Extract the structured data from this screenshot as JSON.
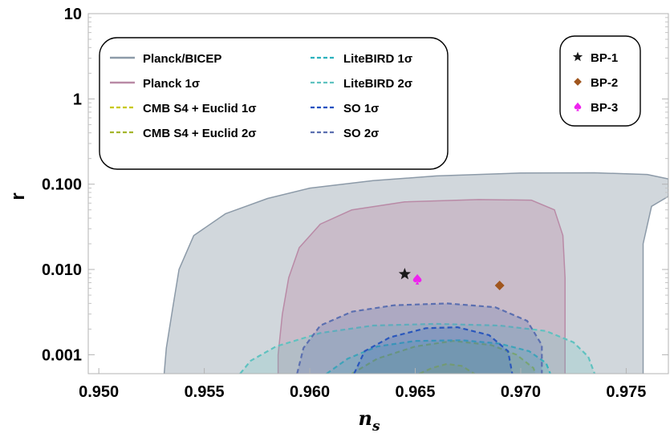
{
  "chart_data": {
    "type": "contour",
    "xlabel": "n",
    "xlabel_sub": "s",
    "ylabel": "r",
    "xlim": [
      0.9495,
      0.977
    ],
    "ylim": [
      0.0006,
      10
    ],
    "yscale": "log",
    "x_ticks": [
      0.95,
      0.955,
      0.96,
      0.965,
      0.97,
      0.975
    ],
    "x_tick_labels": [
      "0.950",
      "0.955",
      "0.960",
      "0.965",
      "0.970",
      "0.975"
    ],
    "y_ticks": [
      0.001,
      0.01,
      0.1,
      1,
      10
    ],
    "y_tick_labels": [
      "0.001",
      "0.010",
      "0.100",
      "1",
      "10"
    ],
    "regions": [
      {
        "name": "Planck/BICEP",
        "style": "filled",
        "color": "#8c9aa8",
        "fill_opacity": 0.4,
        "points": [
          [
            0.9531,
            0.0006
          ],
          [
            0.9532,
            0.0012
          ],
          [
            0.9535,
            0.0035
          ],
          [
            0.9538,
            0.01
          ],
          [
            0.9545,
            0.025
          ],
          [
            0.956,
            0.045
          ],
          [
            0.958,
            0.068
          ],
          [
            0.96,
            0.09
          ],
          [
            0.963,
            0.11
          ],
          [
            0.966,
            0.125
          ],
          [
            0.97,
            0.135
          ],
          [
            0.9735,
            0.136
          ],
          [
            0.976,
            0.13
          ],
          [
            0.977,
            0.115
          ],
          [
            0.977,
            0.072
          ],
          [
            0.9762,
            0.055
          ],
          [
            0.9758,
            0.02
          ],
          [
            0.9758,
            0.003
          ],
          [
            0.9758,
            0.0006
          ]
        ]
      },
      {
        "name": "Planck 1σ",
        "style": "filled",
        "color": "#b98aa6",
        "fill_opacity": 0.35,
        "points": [
          [
            0.9585,
            0.0006
          ],
          [
            0.9585,
            0.001
          ],
          [
            0.9587,
            0.003
          ],
          [
            0.959,
            0.008
          ],
          [
            0.9595,
            0.018
          ],
          [
            0.9605,
            0.034
          ],
          [
            0.962,
            0.05
          ],
          [
            0.9645,
            0.062
          ],
          [
            0.968,
            0.066
          ],
          [
            0.9705,
            0.065
          ],
          [
            0.9716,
            0.05
          ],
          [
            0.972,
            0.025
          ],
          [
            0.9721,
            0.008
          ],
          [
            0.9721,
            0.002
          ],
          [
            0.9721,
            0.0006
          ]
        ]
      },
      {
        "name": "CMB S4 + Euclid 1σ",
        "style": "dashed",
        "color": "#c8c800",
        "fill_opacity": 0.2,
        "points": [
          [
            0.9652,
            0.0006
          ],
          [
            0.9658,
            0.0007
          ],
          [
            0.9665,
            0.00078
          ],
          [
            0.9672,
            0.00074
          ],
          [
            0.9678,
            0.0006
          ]
        ]
      },
      {
        "name": "CMB S4 + Euclid 2σ",
        "style": "dashed",
        "color": "#a4b52c",
        "fill_opacity": 0.2,
        "points": [
          [
            0.962,
            0.0006
          ],
          [
            0.9632,
            0.0009
          ],
          [
            0.965,
            0.00125
          ],
          [
            0.9668,
            0.00145
          ],
          [
            0.9686,
            0.0013
          ],
          [
            0.9698,
            0.001
          ],
          [
            0.9706,
            0.0007
          ],
          [
            0.9707,
            0.0006
          ]
        ]
      },
      {
        "name": "LiteBIRD 1σ",
        "style": "dashed",
        "color": "#2ab1bd",
        "fill_opacity": 0.2,
        "points": [
          [
            0.9608,
            0.0006
          ],
          [
            0.9618,
            0.0009
          ],
          [
            0.9632,
            0.00125
          ],
          [
            0.965,
            0.00145
          ],
          [
            0.9672,
            0.00148
          ],
          [
            0.969,
            0.00135
          ],
          [
            0.9704,
            0.0011
          ],
          [
            0.9712,
            0.0008
          ],
          [
            0.9714,
            0.0006
          ]
        ]
      },
      {
        "name": "LiteBIRD 2σ",
        "style": "dashed",
        "color": "#5fc2c0",
        "fill_opacity": 0.2,
        "points": [
          [
            0.9567,
            0.0006
          ],
          [
            0.9572,
            0.00085
          ],
          [
            0.9584,
            0.00125
          ],
          [
            0.9605,
            0.0018
          ],
          [
            0.963,
            0.0022
          ],
          [
            0.966,
            0.0023
          ],
          [
            0.969,
            0.0022
          ],
          [
            0.9712,
            0.0019
          ],
          [
            0.9725,
            0.0014
          ],
          [
            0.9732,
            0.00095
          ],
          [
            0.9735,
            0.0006
          ]
        ]
      },
      {
        "name": "SO 1σ",
        "style": "dashed",
        "color": "#1a4fc0",
        "fill_opacity": 0.2,
        "points": [
          [
            0.9621,
            0.0006
          ],
          [
            0.9626,
            0.0011
          ],
          [
            0.9638,
            0.0016
          ],
          [
            0.9655,
            0.00205
          ],
          [
            0.967,
            0.0021
          ],
          [
            0.9685,
            0.0017
          ],
          [
            0.9694,
            0.0011
          ],
          [
            0.9696,
            0.0006
          ]
        ]
      },
      {
        "name": "SO 2σ",
        "style": "dashed",
        "color": "#5b6fb0",
        "fill_opacity": 0.25,
        "points": [
          [
            0.9594,
            0.0006
          ],
          [
            0.9597,
            0.0012
          ],
          [
            0.9605,
            0.0022
          ],
          [
            0.962,
            0.0032
          ],
          [
            0.964,
            0.0038
          ],
          [
            0.9665,
            0.004
          ],
          [
            0.9688,
            0.0036
          ],
          [
            0.9703,
            0.0025
          ],
          [
            0.971,
            0.0013
          ],
          [
            0.971,
            0.0006
          ]
        ]
      }
    ],
    "points": [
      {
        "name": "BP-1",
        "marker": "star",
        "color": "#1a1a1a",
        "x": 0.9645,
        "y": 0.0088
      },
      {
        "name": "BP-2",
        "marker": "diamond",
        "color": "#a0561e",
        "x": 0.969,
        "y": 0.0065
      },
      {
        "name": "BP-3",
        "marker": "spade",
        "color": "#ee22ee",
        "x": 0.9651,
        "y": 0.0077
      }
    ],
    "legend_regions_left": [
      "Planck/BICEP",
      "Planck 1σ",
      "CMB S4 + Euclid 1σ",
      "CMB S4 + Euclid 2σ"
    ],
    "legend_regions_right": [
      "LiteBIRD 1σ",
      "LiteBIRD 2σ",
      "SO 1σ",
      "SO 2σ"
    ],
    "legend_placement": "top-left",
    "points_legend_placement": "top-right"
  }
}
